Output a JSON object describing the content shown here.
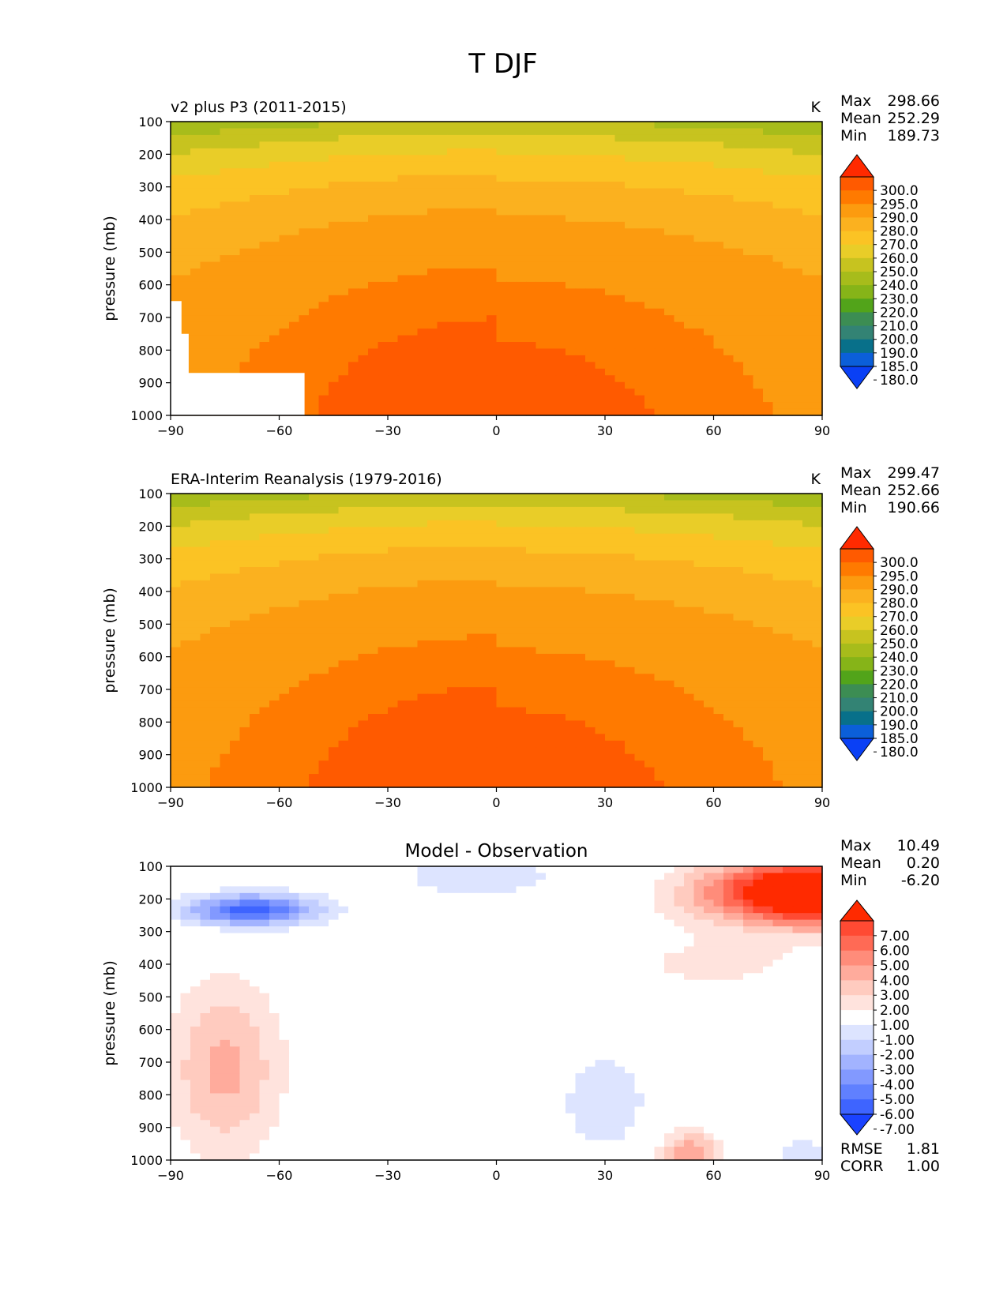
{
  "chart_data": {
    "title": "T DJF",
    "x_ticks": [
      "−90",
      "−60",
      "−30",
      "0",
      "30",
      "60",
      "90"
    ],
    "y_ticks": [
      "100",
      "200",
      "300",
      "400",
      "500",
      "600",
      "700",
      "800",
      "900",
      "1000"
    ],
    "panels": [
      {
        "type": "contourf",
        "title": "v2 plus P3 (2011-2015)",
        "units": "K",
        "xlabel": "",
        "ylabel": "pressure (mb)",
        "xlim": [
          -90,
          90
        ],
        "ylim": [
          1000,
          100
        ],
        "stats": [
          {
            "label": "Max",
            "value": "298.66"
          },
          {
            "label": "Mean",
            "value": "252.29"
          },
          {
            "label": "Min",
            "value": "189.73"
          }
        ],
        "levels": [
          "300.0",
          "295.0",
          "290.0",
          "280.0",
          "270.0",
          "260.0",
          "250.0",
          "240.0",
          "230.0",
          "220.0",
          "210.0",
          "200.0",
          "190.0",
          "185.0",
          "180.0"
        ],
        "colors": [
          "#ff2a00",
          "#ff5a00",
          "#ff7a00",
          "#fc9b0f",
          "#fbb11f",
          "#fbc324",
          "#e9cd28",
          "#c7c31f",
          "#a7bc1b",
          "#86b418",
          "#52a41a",
          "#3c8d53",
          "#338374",
          "#08708a",
          "#0b5fd9",
          "#0a40f5"
        ],
        "surface_mask_approx": [
          [
            -90,
            650
          ],
          [
            -87,
            650
          ],
          [
            -87,
            750
          ],
          [
            -85,
            750
          ],
          [
            -85,
            870
          ],
          [
            -53,
            870
          ],
          [
            -53,
            1000
          ]
        ]
      },
      {
        "type": "contourf",
        "title": "ERA-Interim Reanalysis (1979-2016)",
        "units": "K",
        "xlabel": "",
        "ylabel": "pressure (mb)",
        "xlim": [
          -90,
          90
        ],
        "ylim": [
          1000,
          100
        ],
        "stats": [
          {
            "label": "Max",
            "value": "299.47"
          },
          {
            "label": "Mean",
            "value": "252.66"
          },
          {
            "label": "Min",
            "value": "190.66"
          }
        ],
        "levels": [
          "300.0",
          "295.0",
          "290.0",
          "280.0",
          "270.0",
          "260.0",
          "250.0",
          "240.0",
          "230.0",
          "220.0",
          "210.0",
          "200.0",
          "190.0",
          "185.0",
          "180.0"
        ],
        "colors": [
          "#ff2a00",
          "#ff5a00",
          "#ff7a00",
          "#fc9b0f",
          "#fbb11f",
          "#fbc324",
          "#e9cd28",
          "#c7c31f",
          "#a7bc1b",
          "#86b418",
          "#52a41a",
          "#3c8d53",
          "#338374",
          "#08708a",
          "#0b5fd9",
          "#0a40f5"
        ]
      },
      {
        "type": "contourf",
        "title": "Model - Observation",
        "units": "",
        "xlabel": "",
        "ylabel": "pressure (mb)",
        "xlim": [
          -90,
          90
        ],
        "ylim": [
          1000,
          100
        ],
        "stats": [
          {
            "label": "Max",
            "value": "10.49"
          },
          {
            "label": "Mean",
            "value": "0.20"
          },
          {
            "label": "Min",
            "value": "-6.20"
          }
        ],
        "metrics": [
          {
            "label": "RMSE",
            "value": "1.81"
          },
          {
            "label": "CORR",
            "value": "1.00"
          }
        ],
        "levels": [
          "7.00",
          "6.00",
          "5.00",
          "4.00",
          "3.00",
          "2.00",
          "1.00",
          "-1.00",
          "-2.00",
          "-3.00",
          "-4.00",
          "-5.00",
          "-6.00",
          "-7.00"
        ],
        "colors": [
          "#ff2a00",
          "#ff4a33",
          "#ff6a55",
          "#ff8c7a",
          "#ffab9c",
          "#ffcbbf",
          "#ffe3dd",
          "#ffffff",
          "#dde4ff",
          "#c2ceff",
          "#a2b3ff",
          "#8299ff",
          "#6080ff",
          "#3e64ff",
          "#1a42ff"
        ]
      }
    ]
  }
}
